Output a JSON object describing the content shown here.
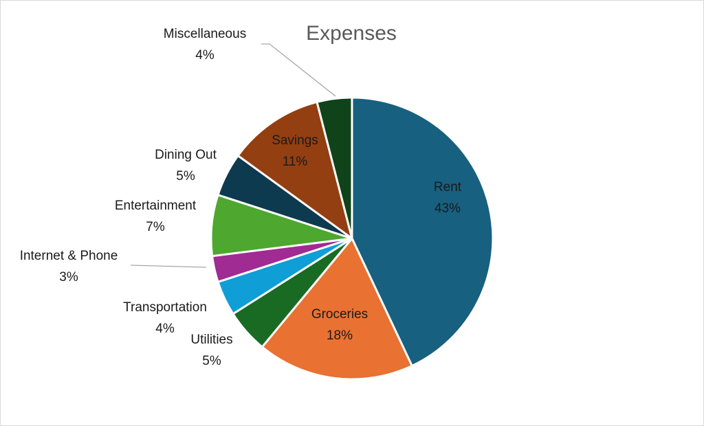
{
  "chart_data": {
    "type": "pie",
    "title": "Expenses",
    "slices": [
      {
        "label": "Rent",
        "value": 43,
        "display": "43%",
        "color": "#17607F",
        "label_pos": "inside"
      },
      {
        "label": "Groceries",
        "value": 18,
        "display": "18%",
        "color": "#E97132",
        "label_pos": "inside"
      },
      {
        "label": "Utilities",
        "value": 5,
        "display": "5%",
        "color": "#196B24",
        "label_pos": "outside"
      },
      {
        "label": "Transportation",
        "value": 4,
        "display": "4%",
        "color": "#0F9ED5",
        "label_pos": "outside"
      },
      {
        "label": "Internet & Phone",
        "value": 3,
        "display": "3%",
        "color": "#A02B93",
        "label_pos": "outside"
      },
      {
        "label": "Entertainment",
        "value": 7,
        "display": "7%",
        "color": "#4EA72E",
        "label_pos": "outside"
      },
      {
        "label": "Dining Out",
        "value": 5,
        "display": "5%",
        "color": "#0E3A4F",
        "label_pos": "outside"
      },
      {
        "label": "Savings",
        "value": 11,
        "display": "11%",
        "color": "#933F12",
        "label_pos": "inside"
      },
      {
        "label": "Miscellaneous",
        "value": 4,
        "display": "4%",
        "color": "#10431A",
        "label_pos": "outside"
      }
    ],
    "legend": "none"
  }
}
